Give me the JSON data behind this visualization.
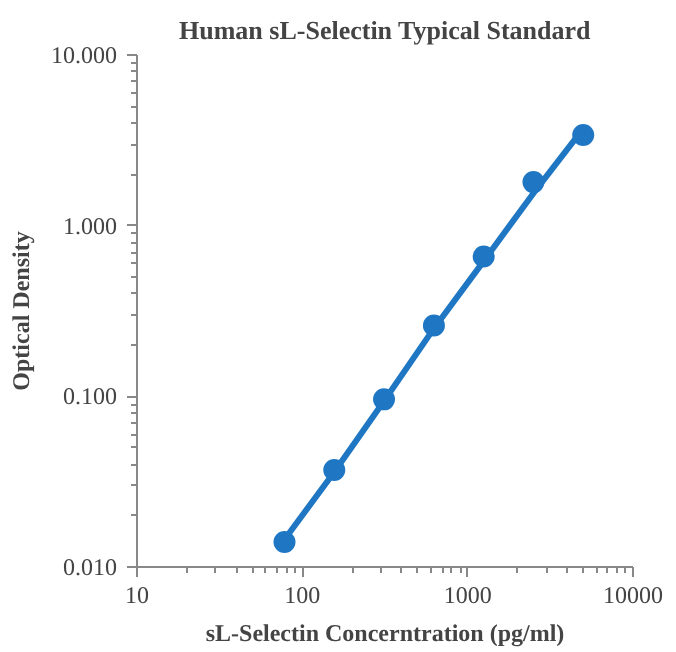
{
  "chart_data": {
    "type": "scatter",
    "title": "Human sL-Selectin Typical Standard",
    "xlabel": "sL-Selectin Concerntration (pg/ml)",
    "ylabel": "Optical Density",
    "log": "xy",
    "xlim": [
      10,
      10000
    ],
    "ylim": [
      0.01,
      10
    ],
    "xticks": [
      10,
      100,
      1000,
      10000
    ],
    "yticks": [
      {
        "value": 0.01,
        "label": "0.010"
      },
      {
        "value": 0.1,
        "label": "0.100"
      },
      {
        "value": 1,
        "label": "1.000"
      },
      {
        "value": 10,
        "label": "10.000"
      }
    ],
    "grid": false,
    "x": [
      78,
      156,
      312,
      625,
      1250,
      2500,
      5000
    ],
    "series": [
      {
        "marker": "circle",
        "color": "#1f77c4",
        "values": [
          0.014,
          0.037,
          0.096,
          0.26,
          0.66,
          1.8,
          3.4
        ]
      },
      {
        "type": "line",
        "marker": "none",
        "color": "#1f77c4",
        "x": [
          78,
          156,
          312,
          625,
          1250,
          2500,
          5000
        ],
        "values": [
          0.0145,
          0.036,
          0.094,
          0.25,
          0.62,
          1.55,
          3.7
        ]
      }
    ]
  }
}
